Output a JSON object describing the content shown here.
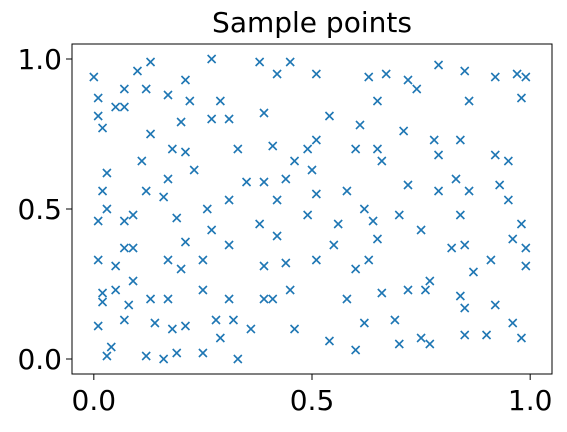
{
  "chart_data": {
    "type": "scatter",
    "title": "Sample points",
    "marker": "x",
    "color": "#1f77b4",
    "xlim": [
      -0.05,
      1.05
    ],
    "ylim": [
      -0.05,
      1.05
    ],
    "xticks": [
      {
        "value": 0,
        "label": "0.0"
      },
      {
        "value": 0.5,
        "label": "0.5"
      },
      {
        "value": 1,
        "label": "1.0"
      }
    ],
    "yticks": [
      {
        "value": 0,
        "label": "0.0"
      },
      {
        "value": 0.5,
        "label": "0.5"
      },
      {
        "value": 1,
        "label": "1.0"
      }
    ],
    "x": [
      0.0,
      0.01,
      0.01,
      0.02,
      0.03,
      0.02,
      0.03,
      0.01,
      0.01,
      0.02,
      0.02,
      0.01,
      0.03,
      0.04,
      0.05,
      0.07,
      0.07,
      0.1,
      0.13,
      0.12,
      0.13,
      0.11,
      0.12,
      0.09,
      0.07,
      0.07,
      0.09,
      0.05,
      0.09,
      0.05,
      0.08,
      0.07,
      0.13,
      0.14,
      0.12,
      0.16,
      0.19,
      0.17,
      0.21,
      0.22,
      0.2,
      0.18,
      0.21,
      0.23,
      0.17,
      0.16,
      0.19,
      0.17,
      0.2,
      0.21,
      0.17,
      0.18,
      0.21,
      0.25,
      0.29,
      0.33,
      0.27,
      0.29,
      0.27,
      0.31,
      0.33,
      0.35,
      0.31,
      0.26,
      0.27,
      0.31,
      0.25,
      0.25,
      0.31,
      0.28,
      0.32,
      0.38,
      0.42,
      0.45,
      0.39,
      0.41,
      0.46,
      0.39,
      0.42,
      0.44,
      0.38,
      0.42,
      0.39,
      0.44,
      0.45,
      0.39,
      0.41,
      0.46,
      0.36,
      0.51,
      0.54,
      0.49,
      0.51,
      0.5,
      0.51,
      0.58,
      0.49,
      0.56,
      0.55,
      0.51,
      0.6,
      0.58,
      0.54,
      0.6,
      0.62,
      0.63,
      0.67,
      0.65,
      0.61,
      0.65,
      0.66,
      0.6,
      0.62,
      0.64,
      0.7,
      0.65,
      0.63,
      0.66,
      0.72,
      0.69,
      0.7,
      0.75,
      0.72,
      0.74,
      0.71,
      0.78,
      0.79,
      0.72,
      0.79,
      0.75,
      0.82,
      0.77,
      0.76,
      0.84,
      0.77,
      0.79,
      0.85,
      0.86,
      0.84,
      0.83,
      0.86,
      0.84,
      0.85,
      0.87,
      0.85,
      0.85,
      0.92,
      0.97,
      0.98,
      0.99,
      0.92,
      0.95,
      0.93,
      0.95,
      0.98,
      0.96,
      0.99,
      0.99,
      0.91,
      0.92,
      0.96,
      0.98,
      0.9
    ],
    "y": [
      0.94,
      0.87,
      0.81,
      0.77,
      0.62,
      0.56,
      0.5,
      0.46,
      0.33,
      0.22,
      0.19,
      0.11,
      0.01,
      0.04,
      0.84,
      0.84,
      0.9,
      0.96,
      0.99,
      0.9,
      0.75,
      0.66,
      0.56,
      0.48,
      0.46,
      0.37,
      0.37,
      0.31,
      0.26,
      0.23,
      0.18,
      0.13,
      0.2,
      0.12,
      0.01,
      0.0,
      0.02,
      0.88,
      0.93,
      0.86,
      0.79,
      0.7,
      0.69,
      0.63,
      0.6,
      0.54,
      0.47,
      0.33,
      0.3,
      0.39,
      0.2,
      0.1,
      0.11,
      0.02,
      0.07,
      0.0,
      1.0,
      0.86,
      0.8,
      0.8,
      0.7,
      0.59,
      0.53,
      0.5,
      0.43,
      0.38,
      0.33,
      0.23,
      0.2,
      0.13,
      0.13,
      0.99,
      0.95,
      0.99,
      0.82,
      0.71,
      0.66,
      0.59,
      0.53,
      0.6,
      0.45,
      0.41,
      0.31,
      0.32,
      0.23,
      0.2,
      0.2,
      0.1,
      0.1,
      0.95,
      0.81,
      0.7,
      0.73,
      0.63,
      0.55,
      0.56,
      0.48,
      0.45,
      0.38,
      0.33,
      0.3,
      0.2,
      0.06,
      0.03,
      0.12,
      0.94,
      0.95,
      0.86,
      0.78,
      0.7,
      0.66,
      0.7,
      0.5,
      0.46,
      0.48,
      0.4,
      0.33,
      0.22,
      0.23,
      0.13,
      0.05,
      0.07,
      0.93,
      0.9,
      0.76,
      0.73,
      0.68,
      0.58,
      0.56,
      0.43,
      0.37,
      0.26,
      0.23,
      0.21,
      0.05,
      0.98,
      0.96,
      0.86,
      0.73,
      0.6,
      0.56,
      0.48,
      0.38,
      0.29,
      0.17,
      0.08,
      0.94,
      0.95,
      0.87,
      0.94,
      0.68,
      0.66,
      0.58,
      0.53,
      0.45,
      0.4,
      0.37,
      0.31,
      0.33,
      0.18,
      0.12,
      0.07,
      0.08
    ]
  }
}
